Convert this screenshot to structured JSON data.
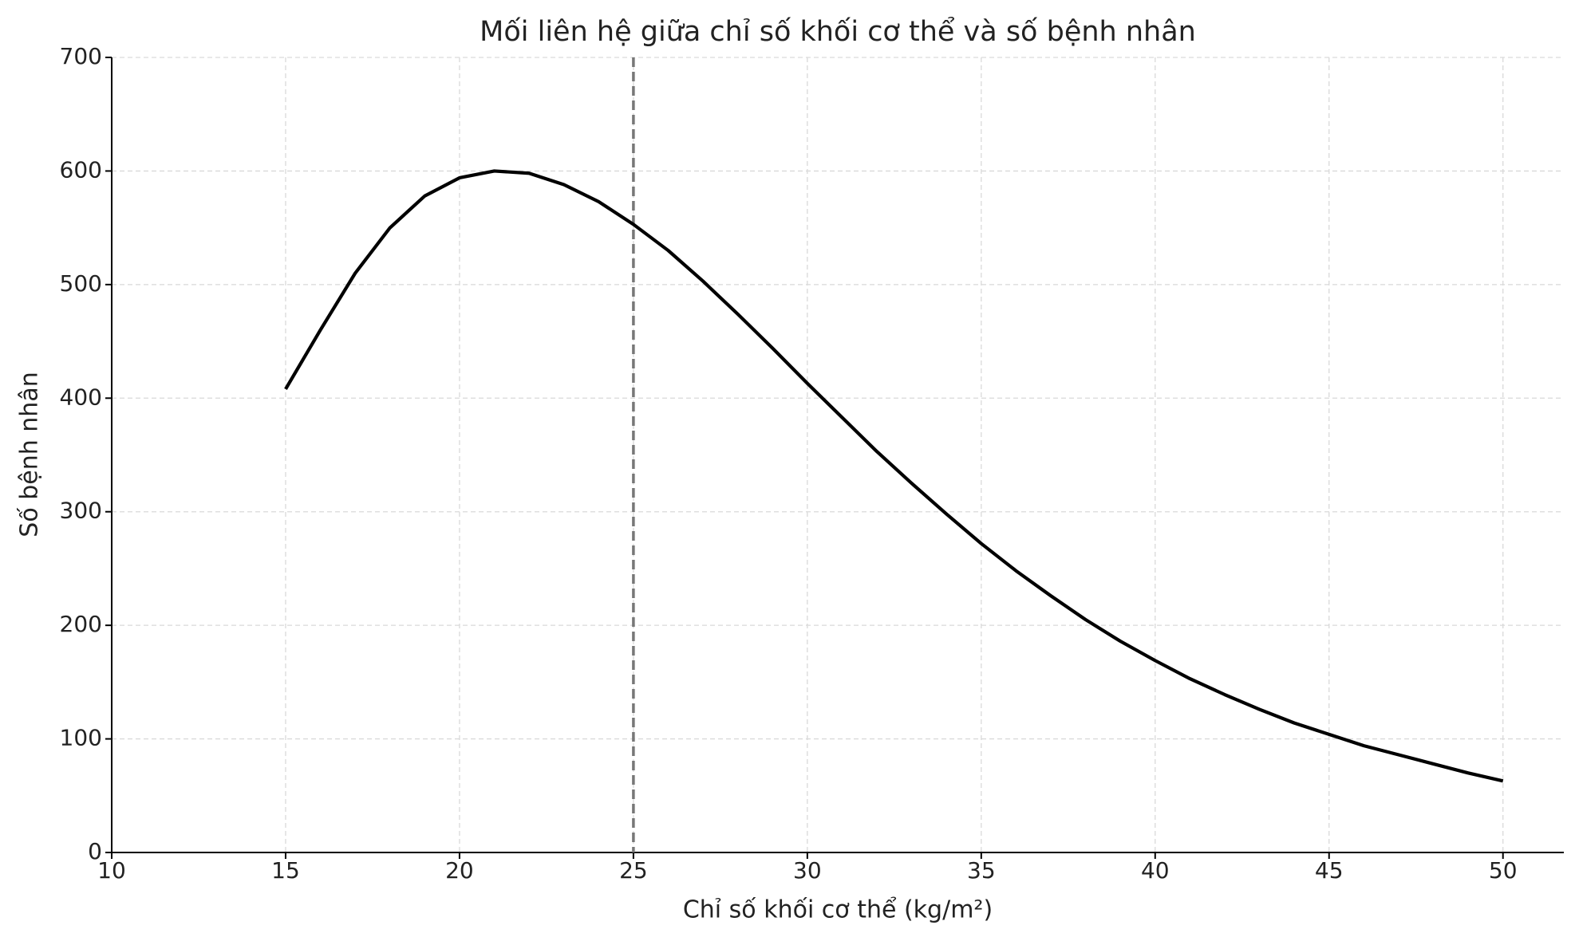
{
  "chart_data": {
    "type": "line",
    "title": "Mối liên hệ giữa chỉ số khối cơ thể và số bệnh nhân",
    "x_label": "Chỉ số khối cơ thể (kg/m²)",
    "y_label": "Số bệnh nhân",
    "x": [
      15,
      16,
      17,
      18,
      19,
      20,
      21,
      22,
      23,
      24,
      25,
      26,
      27,
      28,
      29,
      30,
      31,
      32,
      33,
      34,
      35,
      36,
      37,
      38,
      39,
      40,
      41,
      42,
      43,
      44,
      45,
      46,
      47,
      48,
      49,
      50
    ],
    "values": [
      408,
      460,
      510,
      550,
      578,
      594,
      600,
      598,
      588,
      573,
      553,
      530,
      503,
      474,
      444,
      413,
      383,
      353,
      325,
      298,
      272,
      248,
      226,
      205,
      186,
      169,
      153,
      139,
      126,
      114,
      104,
      94,
      86,
      78,
      70,
      63
    ],
    "color": "#000000",
    "vline": 25,
    "vline_color": "#777777",
    "xlim": [
      10,
      51.75
    ],
    "ylim": [
      0,
      700
    ],
    "xticks": [
      10,
      15,
      20,
      25,
      30,
      35,
      40,
      45,
      50
    ],
    "yticks": [
      0,
      100,
      200,
      300,
      400,
      500,
      600,
      700
    ],
    "grid": true
  }
}
